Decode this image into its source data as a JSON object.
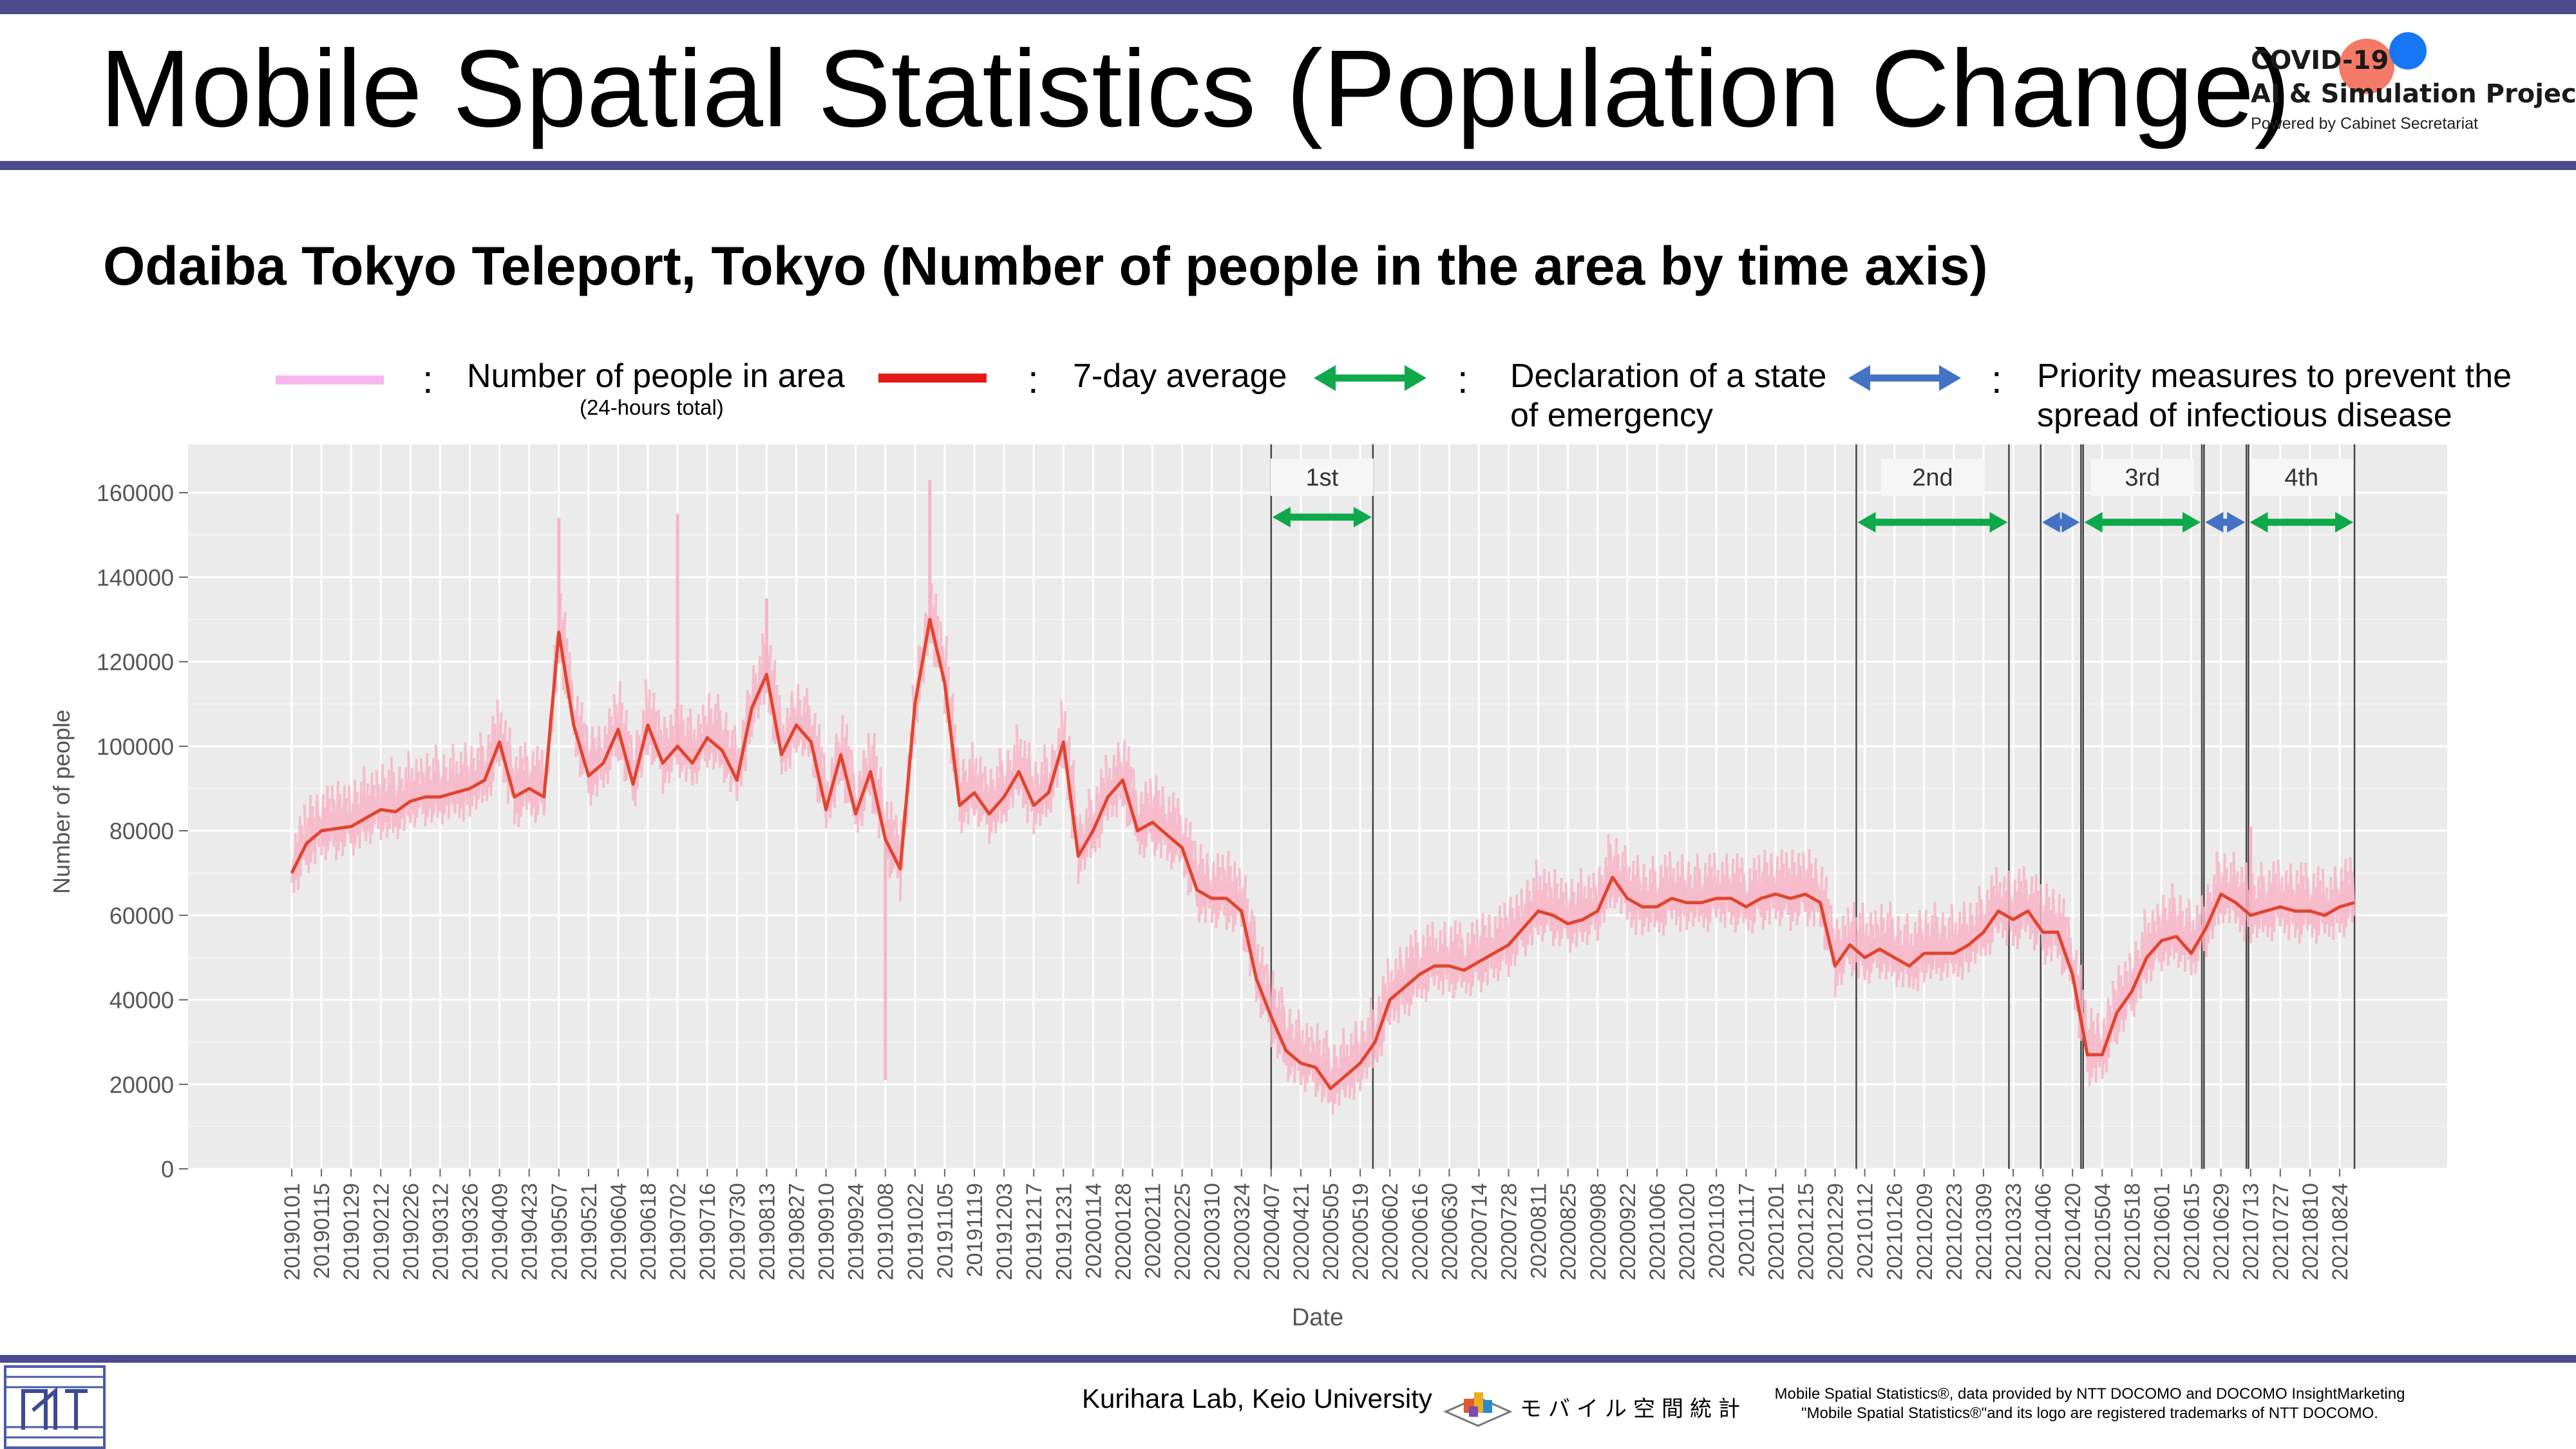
{
  "header": {
    "title": "Mobile Spatial Statistics (Population Change)",
    "brand_line1": "COVID-19",
    "brand_line2": "AI & Simulation Project",
    "brand_sub": "Powered by Cabinet Secretariat"
  },
  "subtitle": "Odaiba Tokyo Teleport, Tokyo (Number of people in the area by time axis)",
  "legend": {
    "colon": ":",
    "items": [
      {
        "label": "Number of people in area",
        "note": "(24-hours total)",
        "color": "#f7b6ec"
      },
      {
        "label": "7-day average",
        "color": "#e41a1a"
      },
      {
        "label_line1": "Declaration of a state",
        "label_line2": "of emergency",
        "color": "#0fa84a"
      },
      {
        "label_line1": "Priority measures to prevent the",
        "label_line2": "spread of infectious disease",
        "color": "#4472c4"
      }
    ]
  },
  "chart_data": {
    "type": "line",
    "xlabel": "Date",
    "ylabel": "Number of people",
    "ylim": [
      0,
      170000
    ],
    "yticks": [
      0,
      20000,
      40000,
      60000,
      80000,
      100000,
      120000,
      140000,
      160000
    ],
    "grid": true,
    "xtick_labels": [
      "20190101",
      "20190115",
      "20190129",
      "20190212",
      "20190226",
      "20190312",
      "20190326",
      "20190409",
      "20190423",
      "20190507",
      "20190521",
      "20190604",
      "20190618",
      "20190702",
      "20190716",
      "20190730",
      "20190813",
      "20190827",
      "20190910",
      "20190924",
      "20191008",
      "20191022",
      "20191105",
      "20191119",
      "20191203",
      "20191217",
      "20191231",
      "20200114",
      "20200128",
      "20200211",
      "20200225",
      "20200310",
      "20200324",
      "20200407",
      "20200421",
      "20200505",
      "20200519",
      "20200602",
      "20200616",
      "20200630",
      "20200714",
      "20200728",
      "20200811",
      "20200825",
      "20200908",
      "20200922",
      "20201006",
      "20201020",
      "20201103",
      "20201117",
      "20201201",
      "20201215",
      "20201229",
      "20210112",
      "20210126",
      "20210209",
      "20210223",
      "20210309",
      "20210323",
      "20210406",
      "20210420",
      "20210504",
      "20210518",
      "20210601",
      "20210615",
      "20210629",
      "20210713",
      "20210727",
      "20210810",
      "20210824"
    ],
    "series": [
      {
        "name": "7-day average",
        "color": "#e0452e",
        "points": [
          [
            "20190101",
            70000
          ],
          [
            "20190108",
            77000
          ],
          [
            "20190115",
            80000
          ],
          [
            "20190122",
            80500
          ],
          [
            "20190129",
            81000
          ],
          [
            "20190205",
            83000
          ],
          [
            "20190212",
            85000
          ],
          [
            "20190219",
            84500
          ],
          [
            "20190226",
            87000
          ],
          [
            "20190305",
            88000
          ],
          [
            "20190312",
            88000
          ],
          [
            "20190319",
            89000
          ],
          [
            "20190326",
            90000
          ],
          [
            "20190402",
            92000
          ],
          [
            "20190409",
            101000
          ],
          [
            "20190416",
            88000
          ],
          [
            "20190423",
            90000
          ],
          [
            "20190430",
            88000
          ],
          [
            "20190507",
            127000
          ],
          [
            "20190514",
            105000
          ],
          [
            "20190521",
            93000
          ],
          [
            "20190528",
            96000
          ],
          [
            "20190604",
            104000
          ],
          [
            "20190611",
            91000
          ],
          [
            "20190618",
            105000
          ],
          [
            "20190625",
            96000
          ],
          [
            "20190702",
            100000
          ],
          [
            "20190709",
            96000
          ],
          [
            "20190716",
            102000
          ],
          [
            "20190723",
            99000
          ],
          [
            "20190730",
            92000
          ],
          [
            "20190806",
            109000
          ],
          [
            "20190813",
            117000
          ],
          [
            "20190820",
            98000
          ],
          [
            "20190827",
            105000
          ],
          [
            "20190903",
            101000
          ],
          [
            "20190910",
            85000
          ],
          [
            "20190917",
            98000
          ],
          [
            "20190924",
            84000
          ],
          [
            "20191001",
            94000
          ],
          [
            "20191008",
            78000
          ],
          [
            "20191015",
            71000
          ],
          [
            "20191022",
            110000
          ],
          [
            "20191029",
            130000
          ],
          [
            "20191105",
            115000
          ],
          [
            "20191112",
            86000
          ],
          [
            "20191119",
            89000
          ],
          [
            "20191126",
            84000
          ],
          [
            "20191203",
            88000
          ],
          [
            "20191210",
            94000
          ],
          [
            "20191217",
            86000
          ],
          [
            "20191224",
            89000
          ],
          [
            "20191231",
            101000
          ],
          [
            "20200107",
            74000
          ],
          [
            "20200114",
            80000
          ],
          [
            "20200121",
            88000
          ],
          [
            "20200128",
            92000
          ],
          [
            "20200204",
            80000
          ],
          [
            "20200211",
            82000
          ],
          [
            "20200218",
            79000
          ],
          [
            "20200225",
            76000
          ],
          [
            "20200303",
            66000
          ],
          [
            "20200310",
            64000
          ],
          [
            "20200317",
            64000
          ],
          [
            "20200324",
            61000
          ],
          [
            "20200331",
            45000
          ],
          [
            "20200407",
            36000
          ],
          [
            "20200414",
            28000
          ],
          [
            "20200421",
            25000
          ],
          [
            "20200428",
            24000
          ],
          [
            "20200505",
            19000
          ],
          [
            "20200512",
            22000
          ],
          [
            "20200519",
            25000
          ],
          [
            "20200526",
            30000
          ],
          [
            "20200602",
            40000
          ],
          [
            "20200609",
            43000
          ],
          [
            "20200616",
            46000
          ],
          [
            "20200623",
            48000
          ],
          [
            "20200630",
            48000
          ],
          [
            "20200707",
            47000
          ],
          [
            "20200714",
            49000
          ],
          [
            "20200721",
            51000
          ],
          [
            "20200728",
            53000
          ],
          [
            "20200804",
            57000
          ],
          [
            "20200811",
            61000
          ],
          [
            "20200818",
            60000
          ],
          [
            "20200825",
            58000
          ],
          [
            "20200901",
            59000
          ],
          [
            "20200908",
            61000
          ],
          [
            "20200915",
            69000
          ],
          [
            "20200922",
            64000
          ],
          [
            "20200929",
            62000
          ],
          [
            "20201006",
            62000
          ],
          [
            "20201013",
            64000
          ],
          [
            "20201020",
            63000
          ],
          [
            "20201027",
            63000
          ],
          [
            "20201103",
            64000
          ],
          [
            "20201110",
            64000
          ],
          [
            "20201117",
            62000
          ],
          [
            "20201124",
            64000
          ],
          [
            "20201201",
            65000
          ],
          [
            "20201208",
            64000
          ],
          [
            "20201215",
            65000
          ],
          [
            "20201222",
            63000
          ],
          [
            "20201229",
            48000
          ],
          [
            "20210105",
            53000
          ],
          [
            "20210112",
            50000
          ],
          [
            "20210119",
            52000
          ],
          [
            "20210126",
            50000
          ],
          [
            "20210202",
            48000
          ],
          [
            "20210209",
            51000
          ],
          [
            "20210216",
            51000
          ],
          [
            "20210223",
            51000
          ],
          [
            "20210302",
            53000
          ],
          [
            "20210309",
            56000
          ],
          [
            "20210316",
            61000
          ],
          [
            "20210323",
            59000
          ],
          [
            "20210330",
            61000
          ],
          [
            "20210406",
            56000
          ],
          [
            "20210413",
            56000
          ],
          [
            "20210420",
            46000
          ],
          [
            "20210427",
            27000
          ],
          [
            "20210504",
            27000
          ],
          [
            "20210511",
            37000
          ],
          [
            "20210518",
            42000
          ],
          [
            "20210525",
            50000
          ],
          [
            "20210601",
            54000
          ],
          [
            "20210608",
            55000
          ],
          [
            "20210615",
            51000
          ],
          [
            "20210622",
            57000
          ],
          [
            "20210629",
            65000
          ],
          [
            "20210706",
            63000
          ],
          [
            "20210713",
            60000
          ],
          [
            "20210720",
            61000
          ],
          [
            "20210727",
            62000
          ],
          [
            "20210803",
            61000
          ],
          [
            "20210810",
            61000
          ],
          [
            "20210817",
            60000
          ],
          [
            "20210824",
            62000
          ],
          [
            "20210831",
            63000
          ]
        ]
      },
      {
        "name": "Number of people in area",
        "color": "#f8b4c6",
        "note": "daily values fluctuate around the 7-day average; notable peaks ~154000 (20190507), ~155000 (20190702), ~163000 (20191029); notable low ~21000 (20191008)"
      }
    ],
    "periods": [
      {
        "label": "1st",
        "type": "Declaration of a state of emergency",
        "start": "20200407",
        "end": "20200525"
      },
      {
        "label": "2nd",
        "type": "Declaration of a state of emergency",
        "start": "20210108",
        "end": "20210321"
      },
      {
        "label": "",
        "type": "Priority measures to prevent the spread of infectious disease",
        "start": "20210405",
        "end": "20210424"
      },
      {
        "label": "3rd",
        "type": "Declaration of a state of emergency",
        "start": "20210425",
        "end": "20210620"
      },
      {
        "label": "",
        "type": "Priority measures to prevent the spread of infectious disease",
        "start": "20210621",
        "end": "20210711"
      },
      {
        "label": "4th",
        "type": "Declaration of a state of emergency",
        "start": "20210712",
        "end": "20210831"
      }
    ]
  },
  "footer": {
    "lab": "Kurihara Lab, Keio University",
    "logo_text": "モバイル空間統計",
    "note_line1": "Mobile Spatial Statistics®, data provided by NTT DOCOMO and DOCOMO InsightMarketing",
    "note_line2": "\"Mobile Spatial Statistics®\"and its logo are registered trademarks of NTT DOCOMO."
  }
}
